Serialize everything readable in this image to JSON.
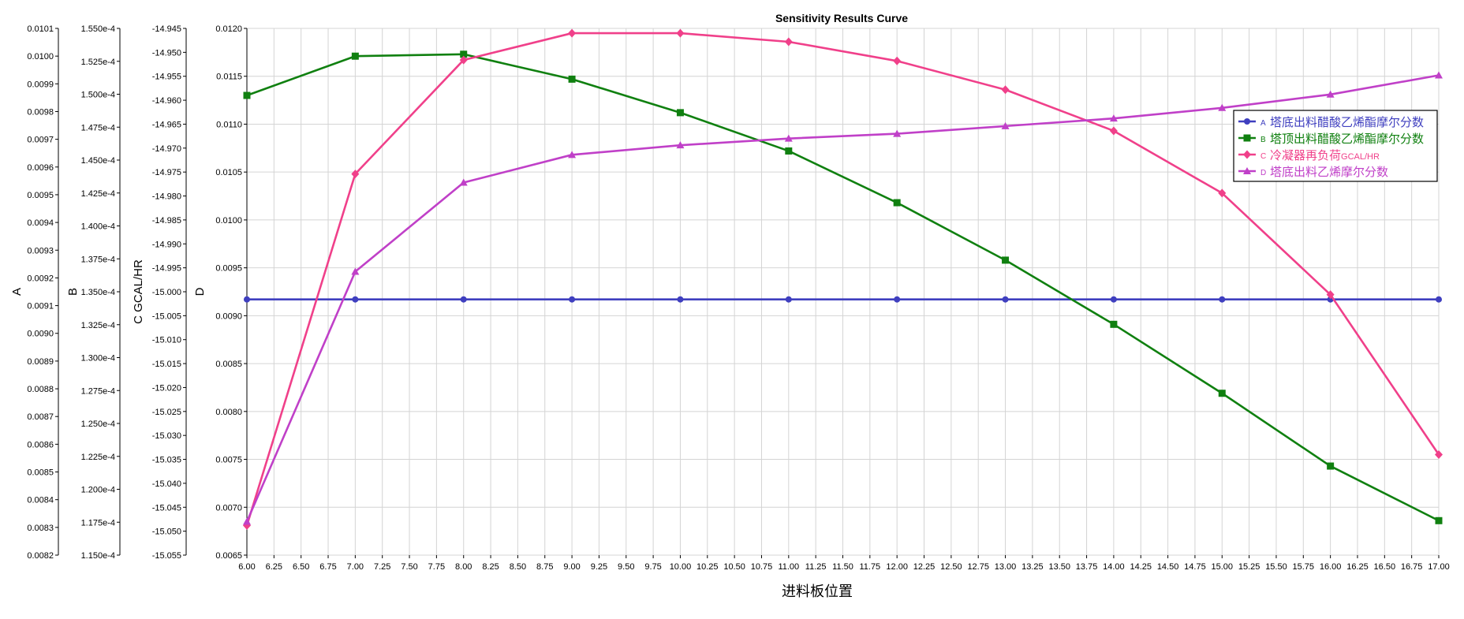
{
  "chart_data": {
    "type": "line",
    "title": "Sensitivity Results Curve",
    "xlabel": "进料板位置",
    "xlim": [
      6.0,
      17.0
    ],
    "x_ticks": [
      "6.00",
      "6.25",
      "6.50",
      "6.75",
      "7.00",
      "7.25",
      "7.50",
      "7.75",
      "8.00",
      "8.25",
      "8.50",
      "8.75",
      "9.00",
      "9.25",
      "9.50",
      "9.75",
      "10.00",
      "10.25",
      "10.50",
      "10.75",
      "11.00",
      "11.25",
      "11.50",
      "11.75",
      "12.00",
      "12.25",
      "12.50",
      "12.75",
      "13.00",
      "13.25",
      "13.50",
      "13.75",
      "14.00",
      "14.25",
      "14.50",
      "14.75",
      "15.00",
      "15.25",
      "15.50",
      "15.75",
      "16.00",
      "16.25",
      "16.50",
      "16.75",
      "17.00"
    ],
    "x": [
      6,
      7,
      8,
      9,
      10,
      11,
      12,
      13,
      14,
      15,
      16,
      17
    ],
    "grid": true,
    "legend_position": "right",
    "axes": [
      {
        "id": "A",
        "label": "A",
        "ylim": [
          0.0082,
          0.0101
        ],
        "ticks": [
          "0.0101",
          "0.0100",
          "0.0099",
          "0.0098",
          "0.0097",
          "0.0096",
          "0.0095",
          "0.0094",
          "0.0093",
          "0.0092",
          "0.0091",
          "0.0090",
          "0.0089",
          "0.0088",
          "0.0087",
          "0.0086",
          "0.0085",
          "0.0084",
          "0.0083",
          "0.0082"
        ]
      },
      {
        "id": "B",
        "label": "B",
        "ylim": [
          0.000115,
          0.000155
        ],
        "ticks": [
          "1.550e-4",
          "1.525e-4",
          "1.500e-4",
          "1.475e-4",
          "1.450e-4",
          "1.425e-4",
          "1.400e-4",
          "1.375e-4",
          "1.350e-4",
          "1.325e-4",
          "1.300e-4",
          "1.275e-4",
          "1.250e-4",
          "1.225e-4",
          "1.200e-4",
          "1.175e-4",
          "1.150e-4"
        ]
      },
      {
        "id": "C",
        "label": "C GCAL/HR",
        "ylim": [
          -15.055,
          -14.945
        ],
        "ticks": [
          "-14.945",
          "-14.950",
          "-14.955",
          "-14.960",
          "-14.965",
          "-14.970",
          "-14.975",
          "-14.980",
          "-14.985",
          "-14.990",
          "-14.995",
          "-15.000",
          "-15.005",
          "-15.010",
          "-15.015",
          "-15.020",
          "-15.025",
          "-15.030",
          "-15.035",
          "-15.040",
          "-15.045",
          "-15.050",
          "-15.055"
        ]
      },
      {
        "id": "D",
        "label": "D",
        "ylim": [
          0.0065,
          0.012
        ],
        "ticks": [
          "0.0120",
          "0.0115",
          "0.0110",
          "0.0105",
          "0.0100",
          "0.0095",
          "0.0090",
          "0.0085",
          "0.0080",
          "0.0075",
          "0.0070",
          "0.0065"
        ]
      }
    ],
    "series": [
      {
        "key": "A",
        "name": "塔底出料醋酸乙烯酯摩尔分数",
        "axis": "D",
        "color": "#3f3fbf",
        "marker": "circle",
        "values": [
          0.00917,
          0.00917,
          0.00917,
          0.00917,
          0.00917,
          0.00917,
          0.00917,
          0.00917,
          0.00917,
          0.00917,
          0.00917,
          0.00917
        ]
      },
      {
        "key": "B",
        "name": "塔顶出料醋酸乙烯酯摩尔分数",
        "axis": "D",
        "color": "#108010",
        "marker": "square",
        "values": [
          0.0113,
          0.01171,
          0.01173,
          0.01147,
          0.01112,
          0.01072,
          0.01018,
          0.00958,
          0.00891,
          0.00819,
          0.00743,
          0.00686
        ]
      },
      {
        "key": "C",
        "name": "冷凝器再负荷",
        "unit": "GCAL/HR",
        "axis": "D",
        "color": "#f0408a",
        "marker": "diamond",
        "values": [
          0.00681,
          0.01048,
          0.01167,
          0.01195,
          0.01195,
          0.01186,
          0.01166,
          0.01136,
          0.01093,
          0.01028,
          0.00922,
          0.00755
        ]
      },
      {
        "key": "D",
        "name": "塔底出料乙烯摩尔分数",
        "axis": "D",
        "color": "#c040c8",
        "marker": "triangle",
        "values": [
          0.00685,
          0.00946,
          0.01039,
          0.01068,
          0.01078,
          0.01085,
          0.0109,
          0.01098,
          0.01106,
          0.01117,
          0.01131,
          0.01151
        ]
      }
    ]
  }
}
